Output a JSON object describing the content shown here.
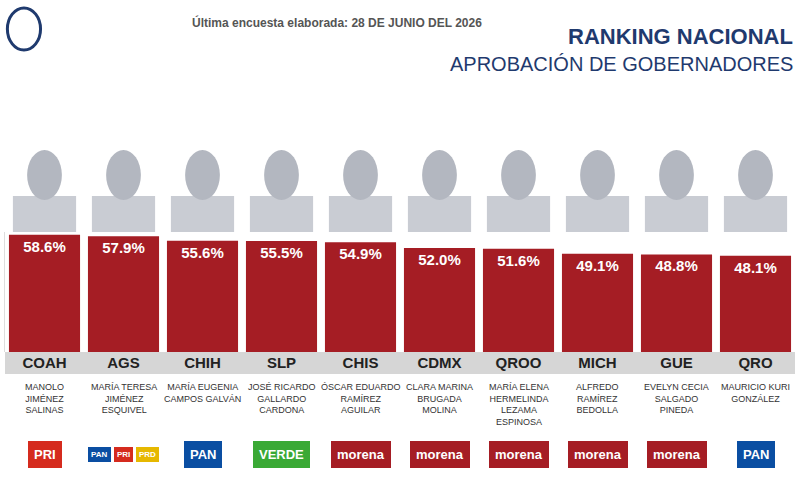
{
  "chart_data": {
    "type": "bar",
    "title": "RANKING NACIONAL",
    "subtitle": "APROBACIÓN DE GOBERNADORES",
    "annotations": [
      "Última encuesta elaborada: 28 DE JUNIO DEL 2026"
    ],
    "categories": [
      "COAH",
      "AGS",
      "CHIH",
      "SLP",
      "CHIS",
      "CDMX",
      "QROO",
      "MICH",
      "GUE",
      "QRO"
    ],
    "values": [
      58.6,
      57.9,
      55.6,
      55.5,
      54.9,
      52.0,
      51.6,
      49.1,
      48.8,
      48.1
    ],
    "value_labels": [
      "58.6%",
      "57.9%",
      "55.6%",
      "55.5%",
      "54.9%",
      "52.0%",
      "51.6%",
      "49.1%",
      "48.8%",
      "48.1%"
    ],
    "data_labels": true,
    "color": "#a51d24",
    "governors": [
      "MANOLO JIMÉNEZ SALINAS",
      "MARÍA TERESA JIMÉNEZ ESQUIVEL",
      "MARÍA EUGENIA CAMPOS GALVÁN",
      "JOSÉ RICARDO GALLARDO CARDONA",
      "ÓSCAR EDUARDO RAMÍREZ AGUILAR",
      "CLARA MARINA BRUGADA MOLINA",
      "MARÍA ELENA HERMELINDA LEZAMA ESPINOSA",
      "ALFREDO RAMÍREZ BEDOLLA",
      "EVELYN CECIA SALGADO PINEDA",
      "MAURICIO KURI GONZÁLEZ"
    ],
    "parties": [
      [
        {
          "name": "PRI",
          "color": "#d52b1e"
        }
      ],
      [
        {
          "name": "PAN",
          "color": "#0a4ea2"
        },
        {
          "name": "PRI",
          "color": "#d52b1e"
        },
        {
          "name": "PRD",
          "color": "#e6b800"
        }
      ],
      [
        {
          "name": "PAN",
          "color": "#0a4ea2"
        }
      ],
      [
        {
          "name": "VERDE",
          "color": "#3aa935"
        }
      ],
      [
        {
          "name": "morena",
          "color": "#a51d24"
        }
      ],
      [
        {
          "name": "morena",
          "color": "#a51d24"
        }
      ],
      [
        {
          "name": "morena",
          "color": "#a51d24"
        }
      ],
      [
        {
          "name": "morena",
          "color": "#a51d24"
        }
      ],
      [
        {
          "name": "morena",
          "color": "#a51d24"
        }
      ],
      [
        {
          "name": "PAN",
          "color": "#0a4ea2"
        }
      ]
    ],
    "ylim": [
      0,
      60
    ],
    "yticks": [],
    "tick_labels": "x",
    "grid": false
  }
}
